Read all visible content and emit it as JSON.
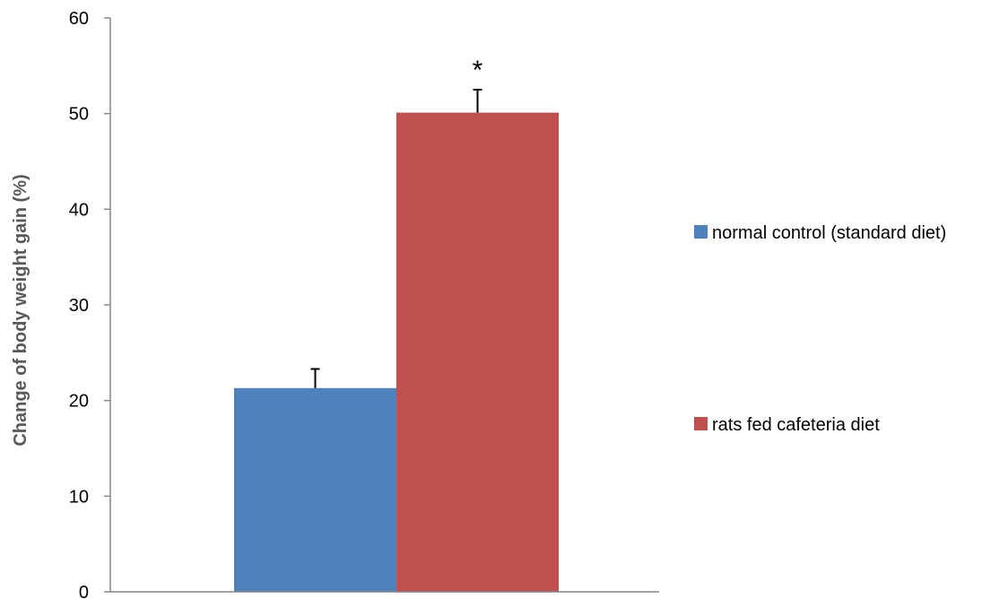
{
  "chart_data": {
    "type": "bar",
    "title": "",
    "xlabel": "",
    "ylabel": "Change of body weight gain (%)",
    "ylim": [
      0,
      60
    ],
    "yticks": [
      0,
      10,
      20,
      30,
      40,
      50,
      60
    ],
    "grid": false,
    "legend_position": "right",
    "series": [
      {
        "name": "normal control (standard diet)",
        "value": 21.3,
        "error": 2.0,
        "color": "#4f81bd",
        "annotation": ""
      },
      {
        "name": "rats fed cafeteria diet",
        "value": 50.1,
        "error": 2.4,
        "color": "#c0504d",
        "annotation": "*"
      }
    ]
  }
}
